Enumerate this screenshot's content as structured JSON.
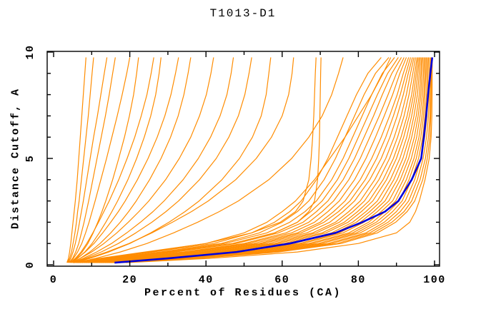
{
  "page": {
    "background": "#ffffff"
  },
  "chart_data": {
    "type": "line",
    "title": "T1013-D1",
    "xlabel": "Percent of Residues (CA)",
    "ylabel": "Distance Cutoff, A",
    "xlim": [
      -1.7,
      101.3
    ],
    "ylim": [
      -0.07,
      10.03
    ],
    "grid": false,
    "legend_position": "none",
    "x_tick_labels": [
      "0",
      "20",
      "40",
      "60",
      "80",
      "100"
    ],
    "x_ticks_major": [
      0,
      20,
      40,
      60,
      80,
      100
    ],
    "x_ticks_minor": [
      10,
      30,
      50,
      70,
      90
    ],
    "y_tick_labels": [
      "0",
      "5",
      "10"
    ],
    "y_ticks_major": [
      0,
      5,
      10
    ],
    "y_ticks_minor": [
      1,
      2,
      3,
      4,
      6,
      7,
      8,
      9
    ],
    "colors": {
      "model_lines": "#ff8c00",
      "highlight_line": "#0000dd",
      "axis": "#000000"
    },
    "cutoffs": [
      0.1,
      0.3,
      0.6,
      1,
      1.5,
      2,
      2.5,
      3,
      4,
      5,
      6,
      7,
      8,
      9,
      9.75
    ],
    "model_percents": [
      [
        3.5,
        3.9,
        4.2,
        4.5,
        4.8,
        5.1,
        5.4,
        5.7,
        6.2,
        6.6,
        7.0,
        7.4,
        7.8,
        8.2,
        8.5
      ],
      [
        3.6,
        4.2,
        4.7,
        5.1,
        5.6,
        6.0,
        6.3,
        6.7,
        7.3,
        7.9,
        8.5,
        9.1,
        9.6,
        10.1,
        10.5
      ],
      [
        3.8,
        4.5,
        5.1,
        5.7,
        6.3,
        6.8,
        7.3,
        7.8,
        8.7,
        9.6,
        10.5,
        11.5,
        12.4,
        13.3,
        14.0
      ],
      [
        4.0,
        5.0,
        5.8,
        6.6,
        7.3,
        8.0,
        8.6,
        9.2,
        10.3,
        11.4,
        12.5,
        13.6,
        14.6,
        15.5,
        16.2
      ],
      [
        4.0,
        5.2,
        6.3,
        7.4,
        8.4,
        9.3,
        10.1,
        10.9,
        12.4,
        13.9,
        15.3,
        16.7,
        18.0,
        19.2,
        20.0
      ],
      [
        4.5,
        6.0,
        7.5,
        9.0,
        10.4,
        11.6,
        12.7,
        13.7,
        15.5,
        17.1,
        18.6,
        19.9,
        21.0,
        21.8,
        22.3
      ],
      [
        4.2,
        5.7,
        7.2,
        8.7,
        10.3,
        11.8,
        13.2,
        14.6,
        17.1,
        19.3,
        21.3,
        23.0,
        24.5,
        25.6,
        26.3
      ],
      [
        4.6,
        6.3,
        8.2,
        10.1,
        12.0,
        13.7,
        15.3,
        16.8,
        19.5,
        21.8,
        23.8,
        25.5,
        26.8,
        27.7,
        28.2
      ],
      [
        4.3,
        6.2,
        8.3,
        10.6,
        12.9,
        15.0,
        17.0,
        18.8,
        22.0,
        24.8,
        27.2,
        29.2,
        30.8,
        32.0,
        32.8
      ],
      [
        5.0,
        7.0,
        9.5,
        12.2,
        15.0,
        17.5,
        19.7,
        21.7,
        25.2,
        28.2,
        30.7,
        32.7,
        34.2,
        35.3,
        36.0
      ],
      [
        4.6,
        7.0,
        10.0,
        13.2,
        16.6,
        19.6,
        22.4,
        25.0,
        29.4,
        33.0,
        36.0,
        38.3,
        40.1,
        41.3,
        42.0
      ],
      [
        5.0,
        7.8,
        11.3,
        15.2,
        19.2,
        22.8,
        26.1,
        29.0,
        34.0,
        38.0,
        41.2,
        43.7,
        45.5,
        46.6,
        47.2
      ],
      [
        5.2,
        8.4,
        12.5,
        17.0,
        21.6,
        25.8,
        29.5,
        32.8,
        38.3,
        42.7,
        46.0,
        48.5,
        50.2,
        51.3,
        52.0
      ],
      [
        5.5,
        9.5,
        14.5,
        20.0,
        25.5,
        30.3,
        34.5,
        38.2,
        44.2,
        48.8,
        52.2,
        54.5,
        55.8,
        56.5,
        57.0
      ],
      [
        5.3,
        9.0,
        14.0,
        19.8,
        25.8,
        31.2,
        36.2,
        40.6,
        47.8,
        53.2,
        57.2,
        60.0,
        61.7,
        62.6,
        63.0
      ],
      [
        6.5,
        13.0,
        25.0,
        40.0,
        52.0,
        59.5,
        63.5,
        65.5,
        67.0,
        67.6,
        68.0,
        68.3,
        68.5,
        68.7,
        68.9
      ],
      [
        7.0,
        15.0,
        30.0,
        47.0,
        58.0,
        64.0,
        67.0,
        68.5,
        69.3,
        69.6,
        69.8,
        69.9,
        70.0,
        70.1,
        70.2
      ],
      [
        6.0,
        11.0,
        17.5,
        24.5,
        31.5,
        37.8,
        43.5,
        48.5,
        56.5,
        62.5,
        67.0,
        70.5,
        73.0,
        74.8,
        76.0
      ],
      [
        5.0,
        13.0,
        26.0,
        42.0,
        52.0,
        58.0,
        62.0,
        65.0,
        69.0,
        72.0,
        74.5,
        77.0,
        79.5,
        82.5,
        86.0
      ],
      [
        5.5,
        14.0,
        28.0,
        44.0,
        54.0,
        60.0,
        64.0,
        67.0,
        71.0,
        74.0,
        76.5,
        79.0,
        81.5,
        84.5,
        88.0
      ],
      [
        5.0,
        12.0,
        24.0,
        40.0,
        50.0,
        56.0,
        60.0,
        63.5,
        68.5,
        72.5,
        76.5,
        80.0,
        83.5,
        86.5,
        88.5
      ],
      [
        6.0,
        15.0,
        29.0,
        45.0,
        56.0,
        62.0,
        66.0,
        69.0,
        73.0,
        76.0,
        78.5,
        81.0,
        83.5,
        86.3,
        89.5
      ],
      [
        6.5,
        16.0,
        31.0,
        47.0,
        58.0,
        64.0,
        67.5,
        70.5,
        74.5,
        77.5,
        80.0,
        82.5,
        85.0,
        87.7,
        90.5
      ],
      [
        7.0,
        17.0,
        32.0,
        48.0,
        59.0,
        65.5,
        69.0,
        72.0,
        76.0,
        79.0,
        81.5,
        84.0,
        86.3,
        88.8,
        91.3
      ],
      [
        7.5,
        18.0,
        34.0,
        50.0,
        61.0,
        67.0,
        70.5,
        73.5,
        77.5,
        80.5,
        83.0,
        85.5,
        87.8,
        90.0,
        92.0
      ],
      [
        8.0,
        19.0,
        35.0,
        51.0,
        62.5,
        68.5,
        72.0,
        75.0,
        79.0,
        82.0,
        84.5,
        86.8,
        89.0,
        90.9,
        92.6
      ],
      [
        8.5,
        20.0,
        36.0,
        52.5,
        64.0,
        70.0,
        73.5,
        76.5,
        80.5,
        83.5,
        86.0,
        88.2,
        90.2,
        91.8,
        93.2
      ],
      [
        9.0,
        21.0,
        37.5,
        54.0,
        65.0,
        71.0,
        74.8,
        77.8,
        81.8,
        84.8,
        87.2,
        89.2,
        91.0,
        92.5,
        93.7
      ],
      [
        9.5,
        22.0,
        39.0,
        55.0,
        66.5,
        72.5,
        76.0,
        79.0,
        83.0,
        86.0,
        88.3,
        90.2,
        91.8,
        93.1,
        94.2
      ],
      [
        10.0,
        23.0,
        40.0,
        56.5,
        68.0,
        74.0,
        77.5,
        80.5,
        84.3,
        87.2,
        89.4,
        91.2,
        92.6,
        93.7,
        94.6
      ],
      [
        10.5,
        24.0,
        41.5,
        58.0,
        69.0,
        75.0,
        78.6,
        81.6,
        85.4,
        88.2,
        90.3,
        92.0,
        93.3,
        94.3,
        95.0
      ],
      [
        11.0,
        25.0,
        43.0,
        59.0,
        70.5,
        76.3,
        79.8,
        82.8,
        86.5,
        89.2,
        91.2,
        92.8,
        94.0,
        94.8,
        95.4
      ],
      [
        11.5,
        26.0,
        44.0,
        60.5,
        71.5,
        77.3,
        80.8,
        83.8,
        87.4,
        90.0,
        91.9,
        93.4,
        94.5,
        95.2,
        95.7
      ],
      [
        12.0,
        27.0,
        45.5,
        62.0,
        73.0,
        78.5,
        82.0,
        85.0,
        88.4,
        90.9,
        92.7,
        94.0,
        95.0,
        95.6,
        96.0
      ],
      [
        12.5,
        28.0,
        46.5,
        63.0,
        74.0,
        79.5,
        83.0,
        86.0,
        89.3,
        91.7,
        93.4,
        94.6,
        95.5,
        96.0,
        96.3
      ],
      [
        13.0,
        29.0,
        48.0,
        64.5,
        75.0,
        80.5,
        84.0,
        87.0,
        90.2,
        92.5,
        94.0,
        95.2,
        96.0,
        96.4,
        96.6
      ],
      [
        13.5,
        30.0,
        49.0,
        65.5,
        76.0,
        81.5,
        85.0,
        88.0,
        91.0,
        93.2,
        94.7,
        95.7,
        96.4,
        96.7,
        96.9
      ],
      [
        14.0,
        31.0,
        50.5,
        67.0,
        77.5,
        82.7,
        86.0,
        89.0,
        91.8,
        93.9,
        95.3,
        96.2,
        96.8,
        97.1,
        97.2
      ],
      [
        14.5,
        32.0,
        51.5,
        68.0,
        78.5,
        83.7,
        87.0,
        89.8,
        92.6,
        94.6,
        95.9,
        96.7,
        97.2,
        97.4,
        97.5
      ],
      [
        15.0,
        33.0,
        53.0,
        69.5,
        79.5,
        84.7,
        88.0,
        90.7,
        93.3,
        95.2,
        96.4,
        97.1,
        97.5,
        97.7,
        97.8
      ],
      [
        15.5,
        34.0,
        54.0,
        70.5,
        80.5,
        85.7,
        89.0,
        91.5,
        94.0,
        95.8,
        96.9,
        97.5,
        97.9,
        98.0,
        98.1
      ],
      [
        16.5,
        35.0,
        55.5,
        72.0,
        82.0,
        86.8,
        90.0,
        92.3,
        94.8,
        96.4,
        97.4,
        98.0,
        98.2,
        98.3,
        98.4
      ],
      [
        17.0,
        36.0,
        56.5,
        73.0,
        83.0,
        87.8,
        91.0,
        93.2,
        95.5,
        97.0,
        97.9,
        98.4,
        98.6,
        98.65,
        98.7
      ],
      [
        17.5,
        37.0,
        58.0,
        74.5,
        84.0,
        88.8,
        92.0,
        94.0,
        96.2,
        97.6,
        98.4,
        98.8,
        98.9,
        98.95,
        99.0
      ],
      [
        18.0,
        38.0,
        59.0,
        75.5,
        85.0,
        89.8,
        92.8,
        94.8,
        96.9,
        98.1,
        98.8,
        99.0,
        99.1,
        99.15,
        99.2
      ],
      [
        19.0,
        41.0,
        64.0,
        80.0,
        90.0,
        93.5,
        95.0,
        96.0,
        97.5,
        98.6,
        99.1,
        99.3,
        99.35,
        99.38,
        99.4
      ]
    ],
    "highlight_percents": [
      16,
      30,
      48,
      62,
      74,
      81,
      87,
      90.5,
      94,
      96.5,
      97.2,
      97.8,
      98.3,
      98.9,
      99.4
    ]
  }
}
